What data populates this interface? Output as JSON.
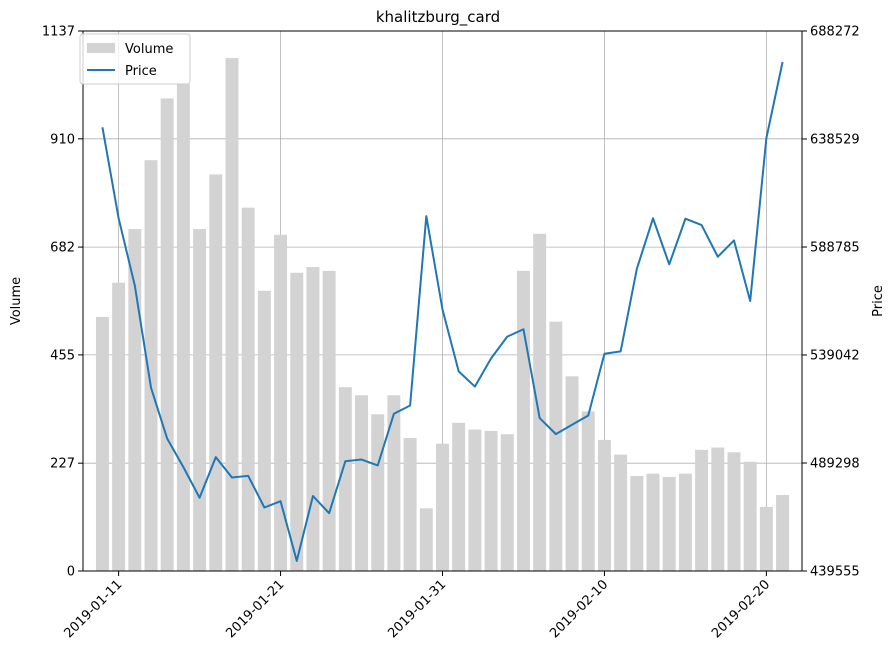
{
  "chart_data": {
    "type": "bar+line",
    "title": "khalitzburg_card",
    "ylabel_left": "Volume",
    "ylabel_right": "Price",
    "xlabel": "",
    "left_ylim": [
      0,
      1137
    ],
    "right_ylim": [
      439555,
      688272
    ],
    "left_ticks": [
      "0",
      "227",
      "455",
      "682",
      "910",
      "1137"
    ],
    "right_ticks": [
      "439555",
      "489298",
      "539042",
      "588785",
      "638529",
      "688272"
    ],
    "x_ticks": [
      "2019-01-11",
      "2019-01-21",
      "2019-01-31",
      "2019-02-10",
      "2019-02-20"
    ],
    "x_tick_dates": [
      "2019-01-11",
      "2019-01-21",
      "2019-01-31",
      "2019-02-10",
      "2019-02-20"
    ],
    "grid": true,
    "legend": {
      "placement": "upper-left",
      "entries": [
        "Volume",
        "Price"
      ]
    },
    "colors": {
      "volume": "#d3d3d3",
      "price": "#1f77b4",
      "grid": "#b0b0b0"
    },
    "dates": [
      "2019-01-10",
      "2019-01-11",
      "2019-01-12",
      "2019-01-13",
      "2019-01-14",
      "2019-01-15",
      "2019-01-16",
      "2019-01-17",
      "2019-01-18",
      "2019-01-19",
      "2019-01-20",
      "2019-01-21",
      "2019-01-22",
      "2019-01-23",
      "2019-01-24",
      "2019-01-25",
      "2019-01-26",
      "2019-01-27",
      "2019-01-28",
      "2019-01-29",
      "2019-01-30",
      "2019-01-31",
      "2019-02-01",
      "2019-02-02",
      "2019-02-03",
      "2019-02-04",
      "2019-02-05",
      "2019-02-06",
      "2019-02-07",
      "2019-02-08",
      "2019-02-09",
      "2019-02-10",
      "2019-02-11",
      "2019-02-12",
      "2019-02-13",
      "2019-02-14",
      "2019-02-15",
      "2019-02-16",
      "2019-02-17",
      "2019-02-18",
      "2019-02-19",
      "2019-02-20",
      "2019-02-21"
    ],
    "series": [
      {
        "name": "Volume",
        "kind": "bar",
        "axis": "left",
        "values": [
          535,
          607,
          720,
          865,
          995,
          1025,
          720,
          835,
          1080,
          765,
          590,
          708,
          628,
          640,
          632,
          387,
          370,
          330,
          370,
          280,
          132,
          268,
          312,
          298,
          295,
          288,
          632,
          710,
          525,
          410,
          336,
          276,
          245,
          200,
          205,
          198,
          205,
          255,
          260,
          250,
          230,
          135,
          160
        ]
      },
      {
        "name": "Price",
        "kind": "line",
        "axis": "right",
        "values": [
          643900,
          602000,
          571000,
          524000,
          500500,
          487400,
          473300,
          492000,
          482600,
          483400,
          468800,
          471700,
          444200,
          474100,
          466200,
          490100,
          490900,
          488200,
          512000,
          515800,
          603000,
          560000,
          531500,
          524500,
          537500,
          547500,
          550900,
          510000,
          502600,
          506900,
          511200,
          539600,
          540700,
          578700,
          602000,
          580800,
          601800,
          598900,
          584300,
          591800,
          563900,
          638900,
          674000
        ]
      }
    ]
  }
}
